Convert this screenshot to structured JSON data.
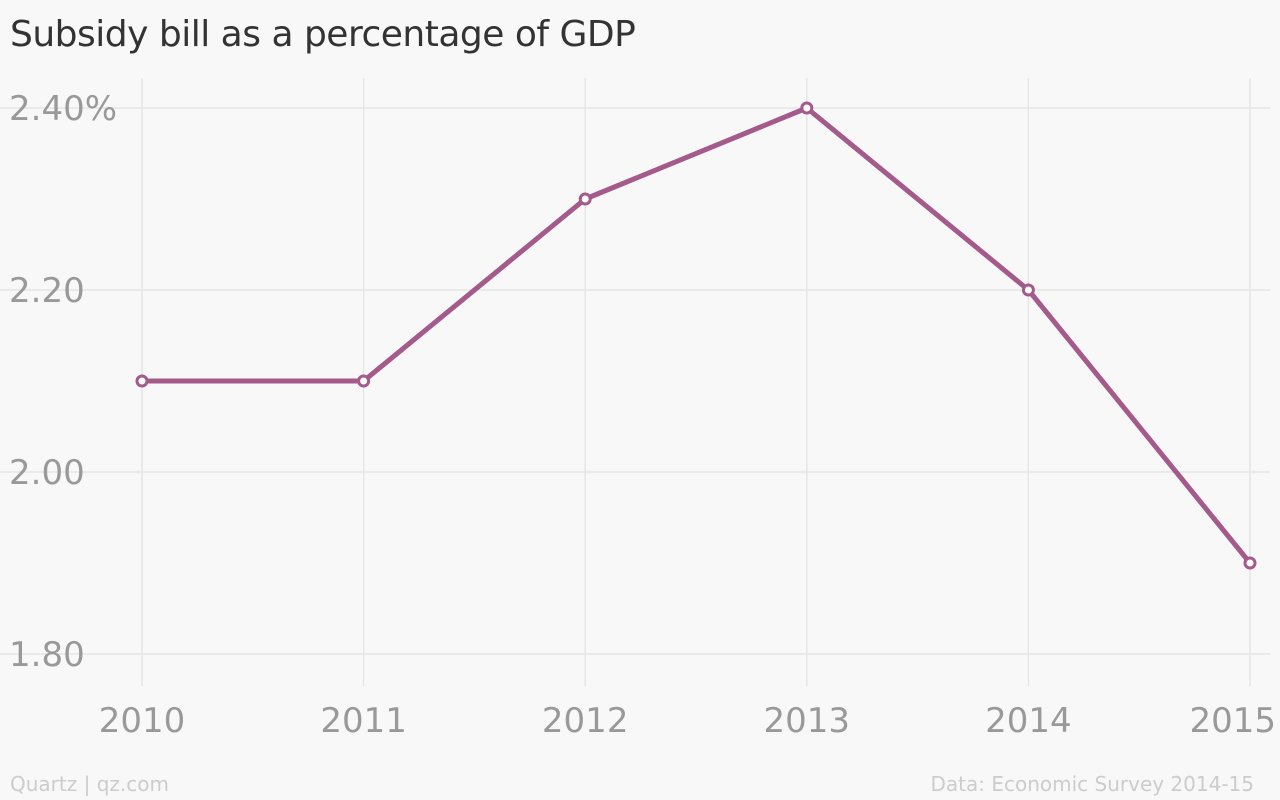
{
  "chart_data": {
    "type": "line",
    "title": "Subsidy bill as a percentage of GDP",
    "xlabel": "",
    "ylabel": "",
    "categories": [
      "2010",
      "2011",
      "2012",
      "2013",
      "2014",
      "2015"
    ],
    "series": [
      {
        "values": [
          2.1,
          2.1,
          2.3,
          2.4,
          2.2,
          1.9
        ],
        "color": "#a45a8a"
      }
    ],
    "ylim": [
      1.8,
      2.4
    ],
    "yticks": [
      {
        "value": 2.4,
        "label": "2.40%"
      },
      {
        "value": 2.2,
        "label": "2.20"
      },
      {
        "value": 2.0,
        "label": "2.00"
      },
      {
        "value": 1.8,
        "label": "1.80"
      }
    ],
    "grid": true,
    "markers": "hollow-circle"
  },
  "footer": {
    "left": "Quartz | qz.com",
    "right": "Data: Economic Survey 2014-15"
  },
  "colors": {
    "background": "#f8f8f8",
    "grid": "#e6e6e6",
    "tick_text": "#999999",
    "title_text": "#333333",
    "footer_text": "#cccccc",
    "marker_fill": "#ffffff"
  }
}
